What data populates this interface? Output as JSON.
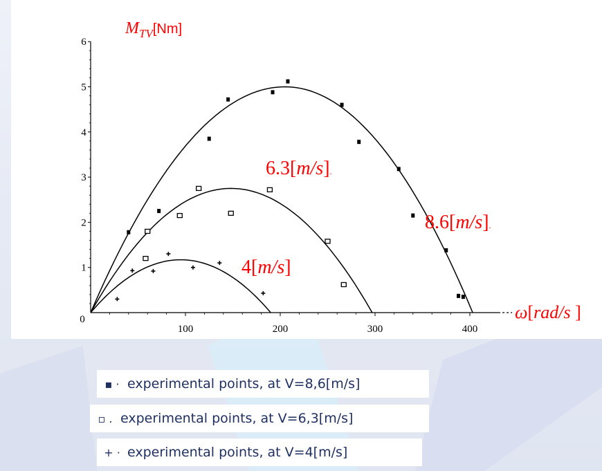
{
  "chart_data": {
    "type": "scatter",
    "ylabel_main": "M",
    "ylabel_sub": "TV",
    "ylabel_unit": "[Nm]",
    "xlabel_omega": "ω",
    "xlabel_unit": "rad/s",
    "xlim": [
      0,
      430
    ],
    "ylim": [
      0,
      6
    ],
    "x_ticks": [
      "100",
      "200",
      "300",
      "400"
    ],
    "x_tick_values": [
      100,
      200,
      300,
      400
    ],
    "y_ticks": [
      "0",
      "1",
      "2",
      "3",
      "4",
      "5",
      "6"
    ],
    "y_tick_values": [
      0,
      1,
      2,
      3,
      4,
      5,
      6
    ],
    "curve_labels": {
      "v86": "8.6[m/s].",
      "v63": "6.3[m/s].",
      "v4": "4[m/s]"
    },
    "series": [
      {
        "key": "v86",
        "marker": "filled-square",
        "fit_peak": {
          "omega": 205,
          "M": 5.0
        },
        "fit_zero": 403,
        "points": [
          [
            40,
            1.78
          ],
          [
            72,
            2.25
          ],
          [
            125,
            3.85
          ],
          [
            145,
            4.72
          ],
          [
            192,
            4.88
          ],
          [
            208,
            5.12
          ],
          [
            265,
            4.6
          ],
          [
            283,
            3.78
          ],
          [
            325,
            3.18
          ],
          [
            340,
            2.15
          ],
          [
            375,
            1.38
          ],
          [
            388,
            0.37
          ],
          [
            393,
            0.35
          ]
        ]
      },
      {
        "key": "v63",
        "marker": "open-square",
        "fit_peak": {
          "omega": 148,
          "M": 2.75
        },
        "fit_zero": 297,
        "points": [
          [
            58,
            1.2
          ],
          [
            60,
            1.8
          ],
          [
            94,
            2.15
          ],
          [
            114,
            2.75
          ],
          [
            148,
            2.2
          ],
          [
            189,
            2.72
          ],
          [
            250,
            1.58
          ],
          [
            267,
            0.62
          ]
        ]
      },
      {
        "key": "v4",
        "marker": "plus",
        "fit_peak": {
          "omega": 95,
          "M": 1.17
        },
        "fit_zero": 190,
        "points": [
          [
            28,
            0.3
          ],
          [
            44,
            0.93
          ],
          [
            66,
            0.92
          ],
          [
            82,
            1.3
          ],
          [
            108,
            1.0
          ],
          [
            136,
            1.1
          ],
          [
            182,
            0.43
          ]
        ]
      }
    ]
  },
  "legend": [
    {
      "symbol": "▪ ·",
      "text": "experimental points, at V=8,6[m/s]"
    },
    {
      "symbol": "▫ .",
      "text": "experimental points, at V=6,3[m/s]"
    },
    {
      "symbol": "+ ·",
      "text": "experimental points, at V=4[m/s]"
    }
  ],
  "colors": {
    "axis": "#000000",
    "curve": "#000000",
    "label_red": "#ff0000",
    "legend_text": "#1f2f5f"
  }
}
